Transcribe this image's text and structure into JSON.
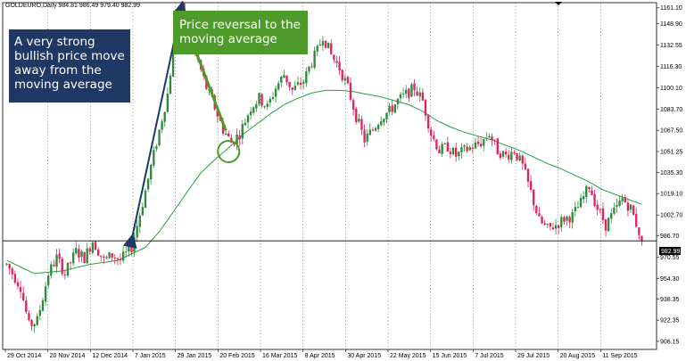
{
  "symbol_info": "GOLDEURO,Daily  984.81 986.49 979.40 982.99",
  "current_price_label": "982.99",
  "annotations": {
    "bullish_move": "A very strong\nbullish price move\naway from the\nmoving average",
    "reversal": "Price reversal to the\nmoving average"
  },
  "colors": {
    "background": "#ffffff",
    "bull_candle": "#2e8b3a",
    "bear_candle": "#e0245e",
    "moving_average": "#22a33a",
    "bullish_arrow": "#1f3864",
    "reversal_arrow": "#4e9a2a",
    "callout_blue": "#1f3864",
    "callout_green": "#4e9a2a",
    "price_line": "#000000"
  },
  "chart_data": {
    "type": "candlestick",
    "symbol": "GOLDEURO",
    "timeframe": "Daily",
    "ohlc_last": {
      "open": 984.81,
      "high": 986.49,
      "low": 979.4,
      "close": 982.99
    },
    "ylim": [
      900.0,
      1165.0
    ],
    "y_ticks": [
      "1161.10",
      "1148.90",
      "1132.55",
      "1116.30",
      "1100.10",
      "1083.70",
      "1067.50",
      "1051.25",
      "1035.30",
      "1019.10",
      "1002.70",
      "986.70",
      "970.55",
      "954.30",
      "938.35",
      "922.35",
      "906.15"
    ],
    "x_ticks": [
      "29 Oct 2014",
      "20 Nov 2014",
      "12 Dec 2014",
      "7 Jan 2015",
      "29 Jan 2015",
      "20 Feb 2015",
      "16 Mar 2015",
      "8 Apr 2015",
      "30 Apr 2015",
      "22 May 2015",
      "15 Jun 2015",
      "7 Jul 2015",
      "29 Jul 2015",
      "20 Aug 2015",
      "11 Sep 2015"
    ],
    "total_bars": 230,
    "price_anchors": [
      [
        0,
        965
      ],
      [
        5,
        948
      ],
      [
        8,
        918
      ],
      [
        11,
        922
      ],
      [
        15,
        958
      ],
      [
        18,
        970
      ],
      [
        21,
        958
      ],
      [
        25,
        975
      ],
      [
        28,
        970
      ],
      [
        31,
        983
      ],
      [
        35,
        968
      ],
      [
        38,
        972
      ],
      [
        41,
        968
      ],
      [
        45,
        978
      ],
      [
        49,
        1012
      ],
      [
        54,
        1058
      ],
      [
        58,
        1095
      ],
      [
        61,
        1145
      ],
      [
        63,
        1160
      ],
      [
        66,
        1140
      ],
      [
        69,
        1120
      ],
      [
        72,
        1100
      ],
      [
        75,
        1085
      ],
      [
        78,
        1068
      ],
      [
        81,
        1058
      ],
      [
        84,
        1065
      ],
      [
        88,
        1085
      ],
      [
        91,
        1092
      ],
      [
        94,
        1085
      ],
      [
        97,
        1100
      ],
      [
        100,
        1110
      ],
      [
        103,
        1098
      ],
      [
        107,
        1105
      ],
      [
        110,
        1120
      ],
      [
        112,
        1128
      ],
      [
        114,
        1140
      ],
      [
        117,
        1125
      ],
      [
        120,
        1115
      ],
      [
        123,
        1100
      ],
      [
        126,
        1078
      ],
      [
        129,
        1060
      ],
      [
        132,
        1068
      ],
      [
        135,
        1078
      ],
      [
        138,
        1082
      ],
      [
        141,
        1090
      ],
      [
        144,
        1095
      ],
      [
        147,
        1100
      ],
      [
        150,
        1090
      ],
      [
        153,
        1065
      ],
      [
        156,
        1052
      ],
      [
        159,
        1055
      ],
      [
        162,
        1048
      ],
      [
        165,
        1052
      ],
      [
        168,
        1055
      ],
      [
        171,
        1058
      ],
      [
        174,
        1065
      ],
      [
        177,
        1052
      ],
      [
        180,
        1048
      ],
      [
        183,
        1052
      ],
      [
        186,
        1040
      ],
      [
        189,
        1020
      ],
      [
        192,
        998
      ],
      [
        195,
        992
      ],
      [
        198,
        995
      ],
      [
        201,
        1000
      ],
      [
        204,
        1002
      ],
      [
        207,
        1012
      ],
      [
        210,
        1025
      ],
      [
        213,
        1008
      ],
      [
        216,
        995
      ],
      [
        219,
        1005
      ],
      [
        222,
        1015
      ],
      [
        225,
        1008
      ],
      [
        228,
        990
      ],
      [
        229,
        983
      ]
    ],
    "moving_average_anchors": [
      [
        0,
        968
      ],
      [
        10,
        958
      ],
      [
        20,
        960
      ],
      [
        30,
        965
      ],
      [
        40,
        968
      ],
      [
        50,
        978
      ],
      [
        55,
        990
      ],
      [
        60,
        1005
      ],
      [
        65,
        1020
      ],
      [
        70,
        1035
      ],
      [
        75,
        1045
      ],
      [
        80,
        1054
      ],
      [
        85,
        1064
      ],
      [
        90,
        1072
      ],
      [
        95,
        1080
      ],
      [
        100,
        1087
      ],
      [
        105,
        1092
      ],
      [
        110,
        1096
      ],
      [
        115,
        1098
      ],
      [
        120,
        1098
      ],
      [
        125,
        1097
      ],
      [
        130,
        1095
      ],
      [
        135,
        1093
      ],
      [
        140,
        1090
      ],
      [
        145,
        1087
      ],
      [
        150,
        1082
      ],
      [
        155,
        1075
      ],
      [
        160,
        1070
      ],
      [
        165,
        1066
      ],
      [
        170,
        1063
      ],
      [
        175,
        1060
      ],
      [
        180,
        1056
      ],
      [
        185,
        1052
      ],
      [
        190,
        1047
      ],
      [
        195,
        1042
      ],
      [
        200,
        1038
      ],
      [
        205,
        1033
      ],
      [
        210,
        1028
      ],
      [
        215,
        1022
      ],
      [
        220,
        1018
      ],
      [
        225,
        1014
      ],
      [
        229,
        1011
      ]
    ]
  }
}
